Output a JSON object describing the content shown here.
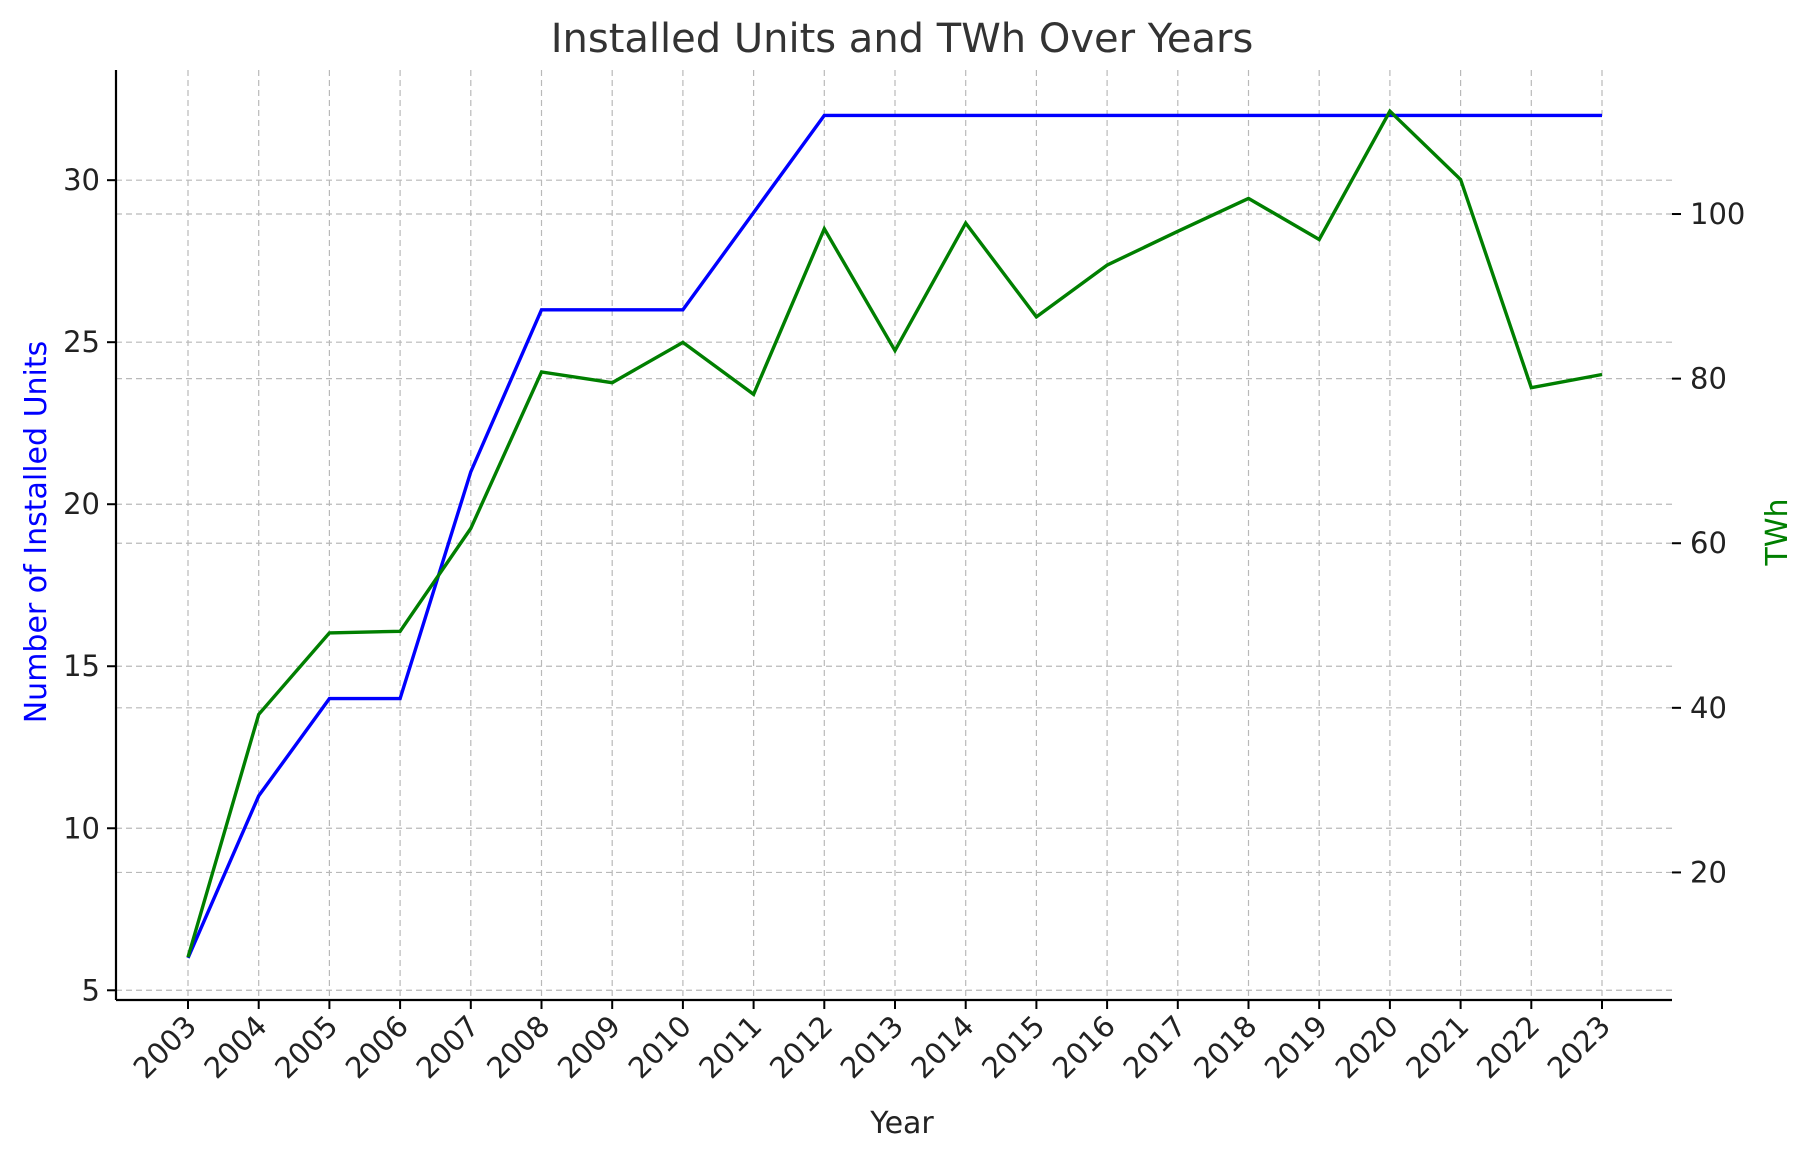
{
  "chart_data": {
    "type": "line",
    "title": "Installed Units and TWh Over Years",
    "xlabel": "Year",
    "categories": [
      "2003",
      "2004",
      "2005",
      "2006",
      "2007",
      "2008",
      "2009",
      "2010",
      "2011",
      "2012",
      "2013",
      "2014",
      "2015",
      "2016",
      "2017",
      "2018",
      "2019",
      "2020",
      "2021",
      "2022",
      "2023"
    ],
    "y_left": {
      "label": "Number of Installed Units",
      "range": [
        4.7,
        33.4
      ],
      "ticks": [
        5,
        10,
        15,
        20,
        25,
        30
      ],
      "color": "#0000ff"
    },
    "y_right": {
      "label": "TWh",
      "range": [
        4.5,
        117.5
      ],
      "ticks": [
        20,
        40,
        60,
        80,
        100
      ],
      "color": "#007f00"
    },
    "series": [
      {
        "axis": "left",
        "color": "#0000ff",
        "values": [
          6,
          11,
          14,
          14,
          21,
          26,
          26,
          26,
          29,
          32,
          32,
          32,
          32,
          32,
          32,
          32,
          32,
          32,
          32,
          32,
          32
        ]
      },
      {
        "axis": "right",
        "color": "#007f00",
        "values": [
          9.7,
          39.2,
          49.1,
          49.3,
          61.8,
          80.8,
          79.5,
          84.4,
          78.1,
          98.2,
          83.4,
          98.9,
          87.5,
          93.8,
          97.9,
          101.9,
          96.9,
          112.5,
          104.2,
          78.9,
          80.5
        ]
      }
    ],
    "grid": true
  }
}
